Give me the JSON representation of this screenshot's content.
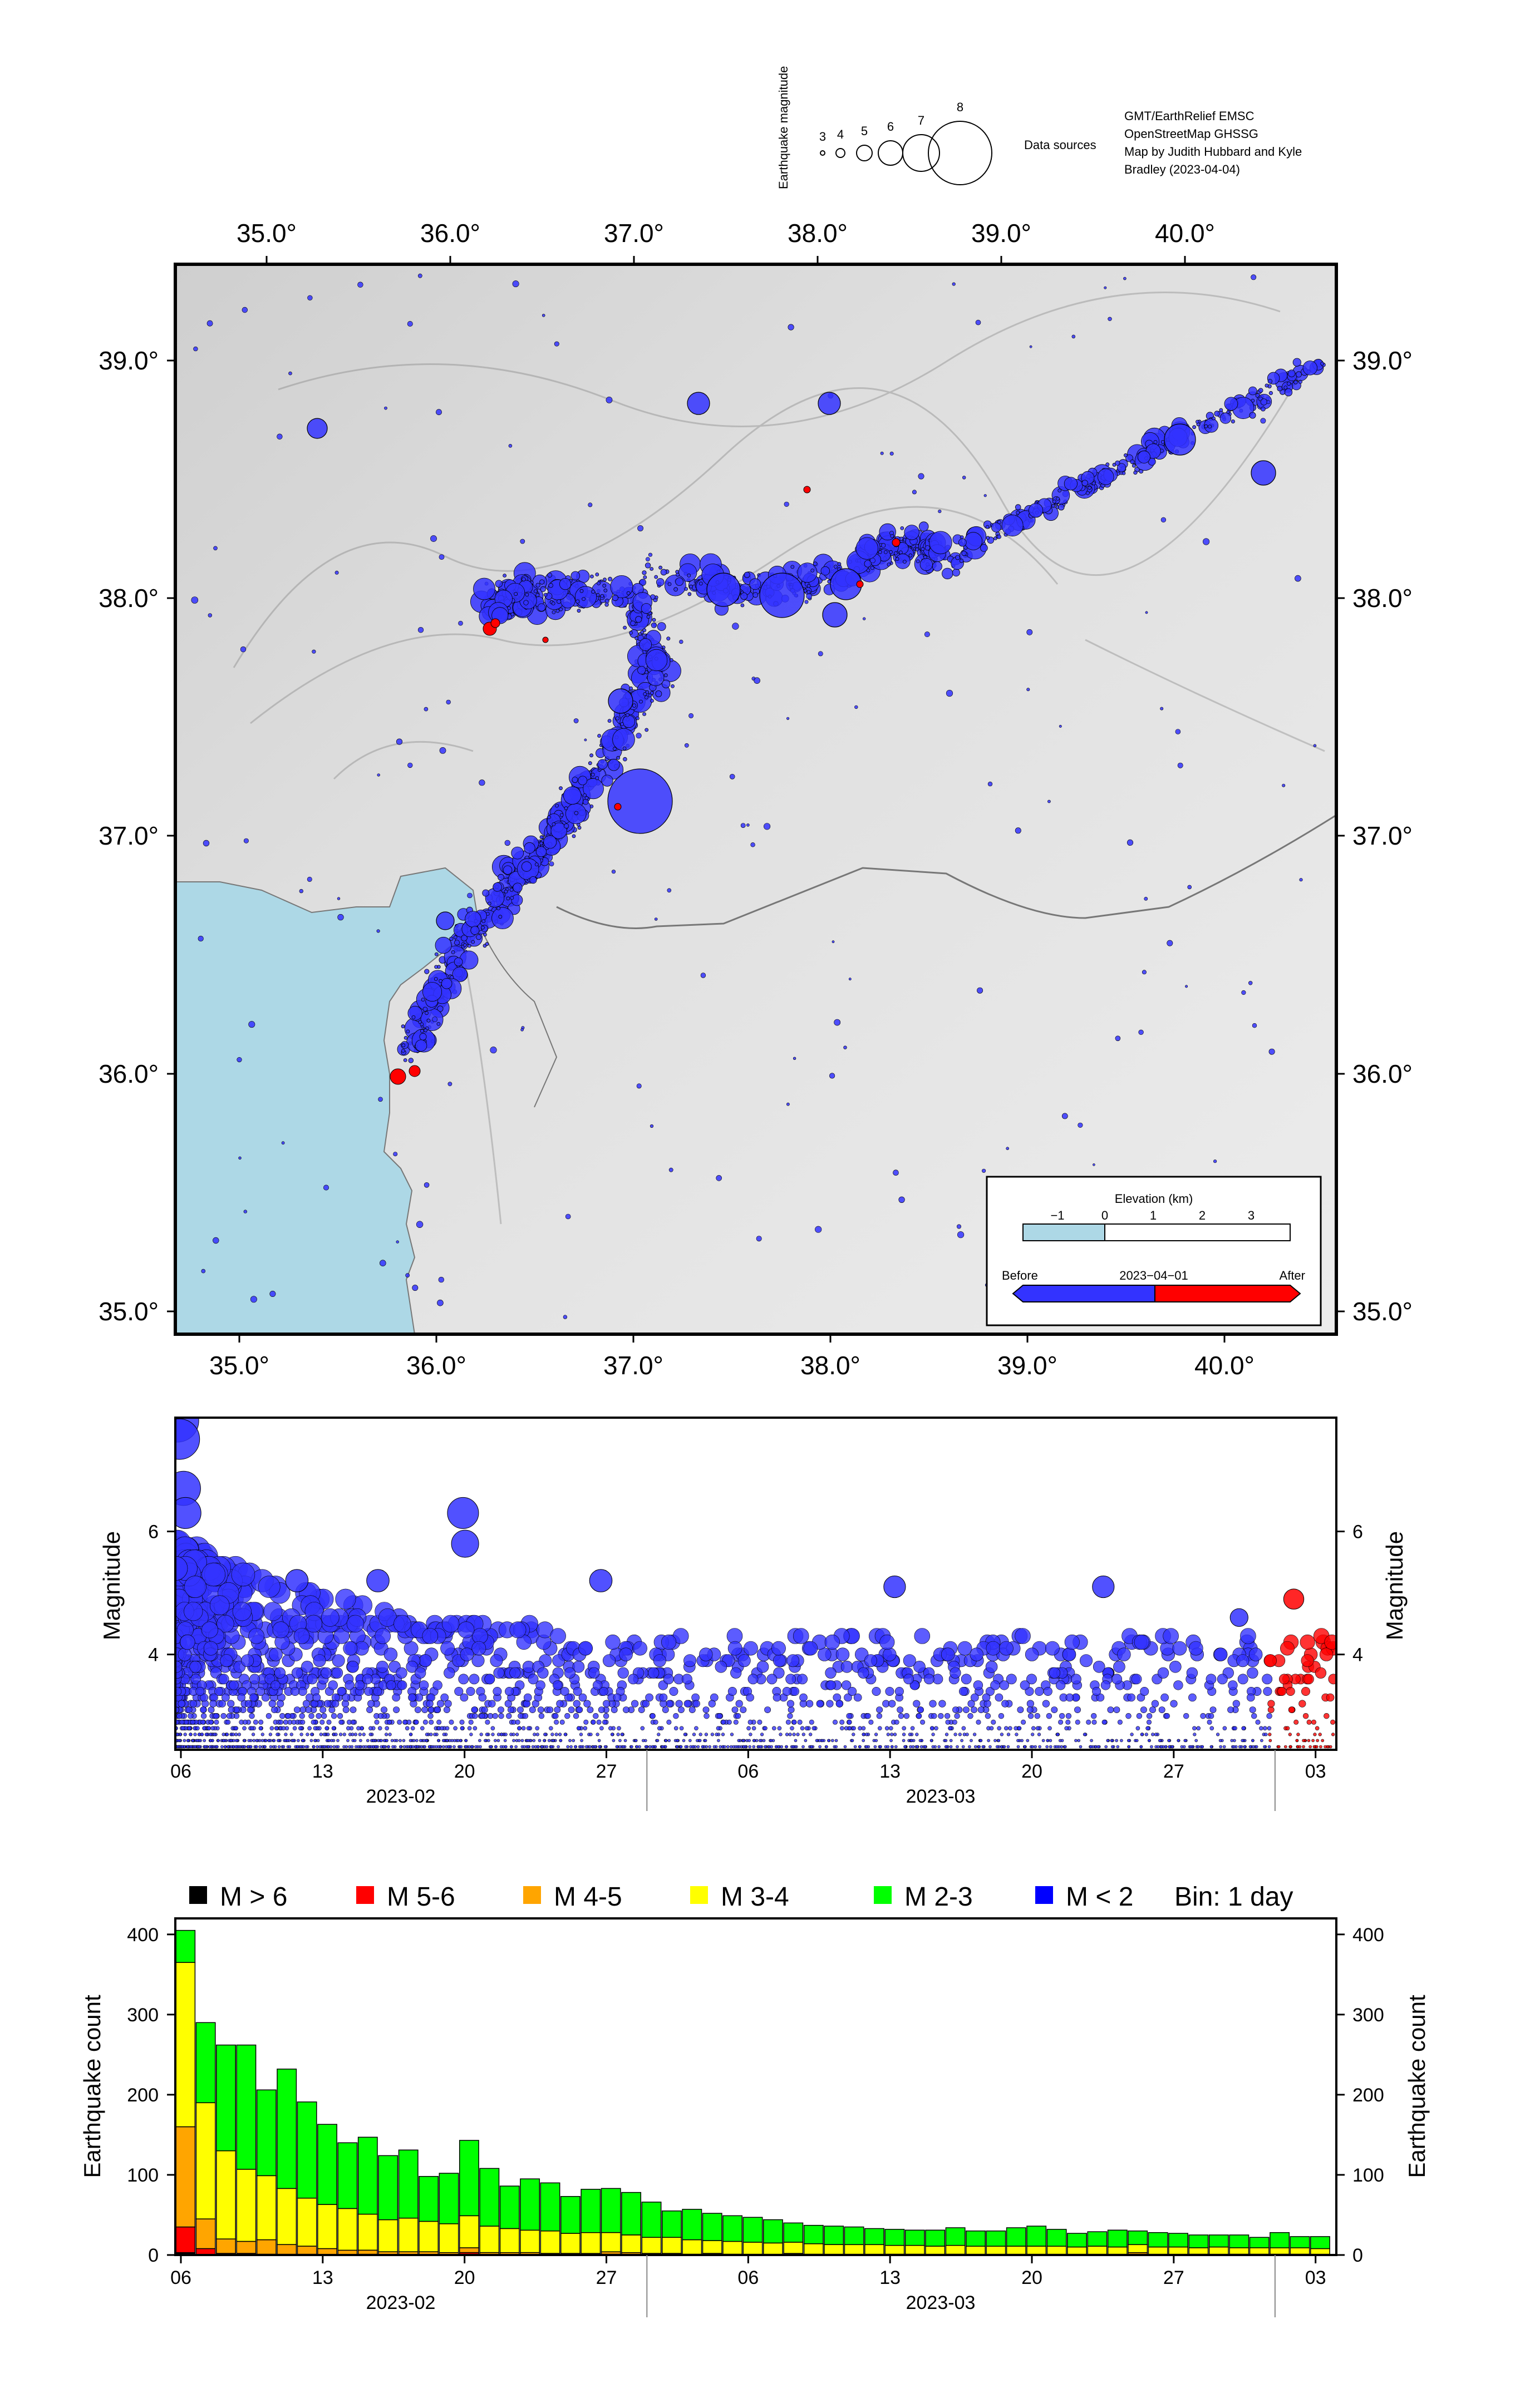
{
  "header": {
    "magnitude_title": "Earthquake magnitude",
    "magnitude_labels": [
      "3",
      "4",
      "5",
      "6",
      "7",
      "8"
    ],
    "data_sources_label": "Data sources",
    "credits": [
      "GMT/EarthRelief EMSC",
      "OpenStreetMap GHSSG",
      "Map by Judith Hubbard and Kyle",
      "Bradley (2023-04-04)"
    ]
  },
  "map": {
    "lon_ticks": [
      "35.0°",
      "36.0°",
      "37.0°",
      "38.0°",
      "39.0°",
      "40.0°"
    ],
    "lat_ticks": [
      "39.0°",
      "38.0°",
      "37.0°",
      "36.0°",
      "35.0°"
    ],
    "sea_color": "#add8e6",
    "land_color": "#e2e2e2",
    "legend": {
      "elevation_title": "Elevation (km)",
      "elevation_ticks": [
        "−1",
        "0",
        "1",
        "2",
        "3"
      ],
      "time_before": "Before",
      "time_split": "2023−04−01",
      "time_after": "After",
      "before_color": "#3333ff",
      "after_color": "#ff0000"
    }
  },
  "magnitude_plot": {
    "ylabel_left": "Magnitude",
    "ylabel_right": "Magnitude",
    "yticks": [
      "4",
      "6"
    ],
    "xticks": [
      "06",
      "13",
      "20",
      "27",
      "06",
      "13",
      "20",
      "27",
      "03"
    ],
    "month_labels": [
      "2023-02",
      "2023-03"
    ],
    "notable_events": [
      {
        "day": 0.1,
        "mag": 7.8
      },
      {
        "day": 0.2,
        "mag": 7.5
      },
      {
        "day": 0.4,
        "mag": 6.7
      },
      {
        "day": 0.5,
        "mag": 6.3
      },
      {
        "day": 14.2,
        "mag": 6.3
      },
      {
        "day": 14.3,
        "mag": 5.8
      },
      {
        "day": 6.0,
        "mag": 5.2
      },
      {
        "day": 10.0,
        "mag": 5.2
      },
      {
        "day": 21.0,
        "mag": 5.2
      },
      {
        "day": 35.5,
        "mag": 5.1
      },
      {
        "day": 45.8,
        "mag": 5.1
      },
      {
        "day": 55.2,
        "mag": 4.9
      },
      {
        "day": 52.5,
        "mag": 4.6
      }
    ]
  },
  "histogram": {
    "ylabel_left": "Earthquake count",
    "ylabel_right": "Earthquake count",
    "yticks": [
      "0",
      "100",
      "200",
      "300",
      "400"
    ],
    "xticks": [
      "06",
      "13",
      "20",
      "27",
      "06",
      "13",
      "20",
      "27",
      "03"
    ],
    "month_labels": [
      "2023-02",
      "2023-03"
    ],
    "legend": [
      {
        "label": "M > 6",
        "color": "#000000"
      },
      {
        "label": "M 5-6",
        "color": "#ff0000"
      },
      {
        "label": "M 4-5",
        "color": "#ffa500"
      },
      {
        "label": "M 3-4",
        "color": "#ffff00"
      },
      {
        "label": "M 2-3",
        "color": "#00ff00"
      },
      {
        "label": "M < 2",
        "color": "#0000ff"
      }
    ],
    "bin_label": "Bin: 1 day"
  },
  "chart_data": [
    {
      "type": "scatter",
      "title": "",
      "xlabel": "",
      "ylabel": "Magnitude",
      "ylim": [
        2.4,
        7.8
      ],
      "x_start": "2023-02-06",
      "x_end": "2023-04-04",
      "description_series": [
        {
          "name": "Before 2023-04-01",
          "color": "#3333ff"
        },
        {
          "name": "After 2023-04-01",
          "color": "#ff0000"
        }
      ]
    },
    {
      "type": "bar",
      "ylabel": "Earthquake count",
      "ylim": [
        0,
        420
      ],
      "categories": [
        "2023-02-06",
        "2023-02-07",
        "2023-02-08",
        "2023-02-09",
        "2023-02-10",
        "2023-02-11",
        "2023-02-12",
        "2023-02-13",
        "2023-02-14",
        "2023-02-15",
        "2023-02-16",
        "2023-02-17",
        "2023-02-18",
        "2023-02-19",
        "2023-02-20",
        "2023-02-21",
        "2023-02-22",
        "2023-02-23",
        "2023-02-24",
        "2023-02-25",
        "2023-02-26",
        "2023-02-27",
        "2023-02-28",
        "2023-03-01",
        "2023-03-02",
        "2023-03-03",
        "2023-03-04",
        "2023-03-05",
        "2023-03-06",
        "2023-03-07",
        "2023-03-08",
        "2023-03-09",
        "2023-03-10",
        "2023-03-11",
        "2023-03-12",
        "2023-03-13",
        "2023-03-14",
        "2023-03-15",
        "2023-03-16",
        "2023-03-17",
        "2023-03-18",
        "2023-03-19",
        "2023-03-20",
        "2023-03-21",
        "2023-03-22",
        "2023-03-23",
        "2023-03-24",
        "2023-03-25",
        "2023-03-26",
        "2023-03-27",
        "2023-03-28",
        "2023-03-29",
        "2023-03-30",
        "2023-03-31",
        "2023-04-01",
        "2023-04-02",
        "2023-04-03"
      ],
      "series": [
        {
          "name": "M > 6",
          "values": [
            3,
            0,
            0,
            0,
            0,
            0,
            0,
            0,
            0,
            0,
            0,
            0,
            0,
            0,
            1,
            0,
            0,
            0,
            0,
            0,
            0,
            0,
            0,
            0,
            0,
            0,
            0,
            0,
            0,
            0,
            0,
            0,
            0,
            0,
            0,
            0,
            0,
            0,
            0,
            0,
            0,
            0,
            0,
            0,
            0,
            0,
            0,
            0,
            0,
            0,
            0,
            0,
            0,
            0,
            0,
            0,
            0
          ]
        },
        {
          "name": "M 5-6",
          "values": [
            32,
            8,
            2,
            2,
            1,
            1,
            1,
            0,
            0,
            1,
            0,
            0,
            0,
            0,
            2,
            0,
            0,
            0,
            0,
            0,
            0,
            1,
            1,
            0,
            0,
            0,
            0,
            0,
            0,
            0,
            0,
            0,
            0,
            0,
            0,
            0,
            0,
            0,
            0,
            0,
            0,
            0,
            0,
            0,
            0,
            0,
            0,
            1,
            0,
            0,
            0,
            0,
            0,
            0,
            0,
            0,
            0
          ]
        },
        {
          "name": "M 4-5",
          "values": [
            125,
            37,
            18,
            15,
            18,
            12,
            10,
            8,
            6,
            5,
            4,
            4,
            4,
            3,
            6,
            3,
            3,
            3,
            2,
            2,
            2,
            3,
            2,
            2,
            2,
            1,
            2,
            1,
            1,
            1,
            2,
            1,
            1,
            1,
            1,
            1,
            1,
            1,
            1,
            1,
            1,
            1,
            1,
            1,
            1,
            1,
            1,
            2,
            1,
            1,
            1,
            1,
            1,
            1,
            1,
            1,
            1
          ]
        },
        {
          "name": "M 3-4",
          "values": [
            205,
            145,
            110,
            90,
            80,
            70,
            60,
            55,
            52,
            45,
            40,
            42,
            38,
            36,
            40,
            33,
            30,
            28,
            28,
            25,
            26,
            24,
            22,
            20,
            20,
            18,
            16,
            16,
            15,
            14,
            14,
            13,
            12,
            12,
            12,
            11,
            11,
            10,
            11,
            10,
            10,
            10,
            10,
            10,
            9,
            10,
            9,
            10,
            9,
            9,
            8,
            9,
            8,
            8,
            8,
            8,
            7
          ]
        },
        {
          "name": "M 2-3",
          "values": [
            40,
            100,
            132,
            155,
            107,
            149,
            120,
            100,
            82,
            96,
            80,
            85,
            56,
            63,
            94,
            72,
            53,
            64,
            60,
            46,
            54,
            55,
            53,
            44,
            33,
            38,
            34,
            32,
            31,
            29,
            24,
            23,
            23,
            22,
            20,
            20,
            19,
            20,
            22,
            19,
            19,
            23,
            25,
            21,
            17,
            18,
            21,
            17,
            18,
            17,
            16,
            15,
            16,
            13,
            19,
            14,
            15
          ]
        },
        {
          "name": "M < 2",
          "values": [
            0,
            0,
            0,
            0,
            0,
            0,
            0,
            0,
            0,
            0,
            0,
            0,
            0,
            0,
            0,
            0,
            0,
            0,
            0,
            0,
            0,
            0,
            0,
            0,
            0,
            0,
            0,
            0,
            0,
            0,
            0,
            0,
            0,
            0,
            0,
            0,
            0,
            0,
            0,
            0,
            0,
            0,
            0,
            0,
            0,
            0,
            0,
            0,
            0,
            0,
            0,
            0,
            0,
            0,
            0,
            0,
            0
          ]
        }
      ]
    }
  ]
}
